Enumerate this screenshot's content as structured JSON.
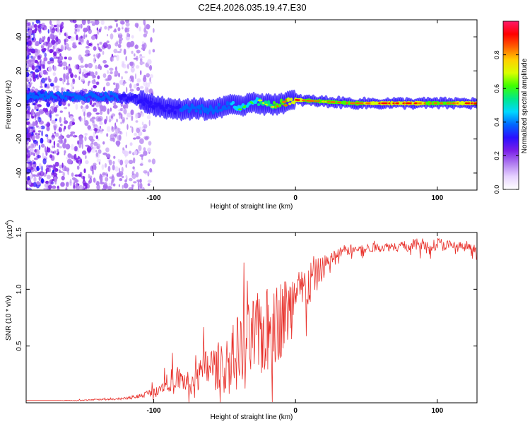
{
  "title": "C2E4.2026.035.19.47.E30",
  "chart_data": [
    {
      "type": "heatmap",
      "name": "spectrogram",
      "xlabel": "Height of straight line (km)",
      "ylabel": "Frequency (Hz)",
      "xlim": [
        -190,
        128
      ],
      "ylim": [
        -50,
        50
      ],
      "xticks": [
        -100,
        0,
        100
      ],
      "yticks": [
        -40,
        -20,
        0,
        20,
        40
      ],
      "grid": false,
      "colorbar": {
        "label": "Normalized spectral amplitude",
        "range": [
          0,
          1
        ],
        "ticks": [
          0.0,
          0.2,
          0.4,
          0.6,
          0.8
        ],
        "colors": [
          "#ffffff",
          "#e6d2ff",
          "#b07cf0",
          "#7a1ee8",
          "#2a10ff",
          "#0066ff",
          "#00d8ff",
          "#00e88a",
          "#3fff00",
          "#d8ff00",
          "#ffd000",
          "#ff6000",
          "#ff0000",
          "#ff1a6a"
        ]
      },
      "ridge": {
        "x": [
          -175,
          -150,
          -130,
          -115,
          -100,
          -85,
          -70,
          -60,
          -48,
          -40,
          -30,
          -20,
          -10,
          0,
          20,
          40,
          60,
          80,
          100,
          128
        ],
        "y": [
          5,
          5,
          5,
          4,
          0,
          -3,
          -2,
          -3,
          0,
          -1,
          2,
          0,
          1,
          3,
          2,
          1,
          1,
          1,
          1,
          1
        ],
        "peak_amplitude": [
          0.55,
          0.55,
          0.5,
          0.4,
          0.45,
          0.45,
          0.5,
          0.5,
          0.55,
          0.6,
          0.65,
          0.7,
          0.85,
          0.9,
          0.8,
          0.85,
          0.9,
          0.9,
          0.85,
          0.9
        ]
      }
    },
    {
      "type": "line",
      "name": "snr",
      "xlabel": "Height of straight line (km)",
      "ylabel": "SNR (10 * v/v)",
      "yscale_label": "(x10",
      "yscale_exp": "4",
      "yscale_close": ")",
      "xlim": [
        -190,
        128
      ],
      "ylim": [
        0,
        1.5
      ],
      "xticks": [
        -100,
        0,
        100
      ],
      "yticks": [
        0.5,
        1.0,
        1.5
      ],
      "ytick_labels": [
        "0.5",
        "1.0",
        "1.5"
      ],
      "color": "#e8302a",
      "series": [
        {
          "name": "SNR",
          "x": [
            -190,
            -170,
            -150,
            -140,
            -130,
            -120,
            -110,
            -100,
            -95,
            -90,
            -85,
            -80,
            -75,
            -70,
            -65,
            -60,
            -55,
            -50,
            -45,
            -40,
            -35,
            -30,
            -25,
            -20,
            -15,
            -10,
            -5,
            0,
            5,
            10,
            15,
            20,
            25,
            30,
            40,
            50,
            60,
            70,
            80,
            90,
            100,
            110,
            120,
            128
          ],
          "y": [
            0.02,
            0.02,
            0.02,
            0.03,
            0.03,
            0.04,
            0.06,
            0.1,
            0.14,
            0.18,
            0.22,
            0.2,
            0.16,
            0.2,
            0.28,
            0.32,
            0.3,
            0.3,
            0.38,
            0.45,
            0.5,
            0.56,
            0.6,
            0.62,
            0.68,
            0.75,
            0.82,
            0.9,
            0.98,
            1.05,
            1.12,
            1.2,
            1.27,
            1.32,
            1.35,
            1.36,
            1.37,
            1.38,
            1.38,
            1.4,
            1.4,
            1.38,
            1.37,
            1.35
          ],
          "noise": [
            0,
            0,
            0.005,
            0.006,
            0.008,
            0.01,
            0.02,
            0.04,
            0.06,
            0.08,
            0.12,
            0.1,
            0.1,
            0.12,
            0.18,
            0.2,
            0.2,
            0.25,
            0.3,
            0.35,
            0.35,
            0.38,
            0.38,
            0.4,
            0.4,
            0.35,
            0.3,
            0.25,
            0.22,
            0.2,
            0.15,
            0.1,
            0.06,
            0.05,
            0.04,
            0.04,
            0.04,
            0.04,
            0.05,
            0.06,
            0.06,
            0.05,
            0.04,
            0.04
          ]
        }
      ]
    }
  ]
}
